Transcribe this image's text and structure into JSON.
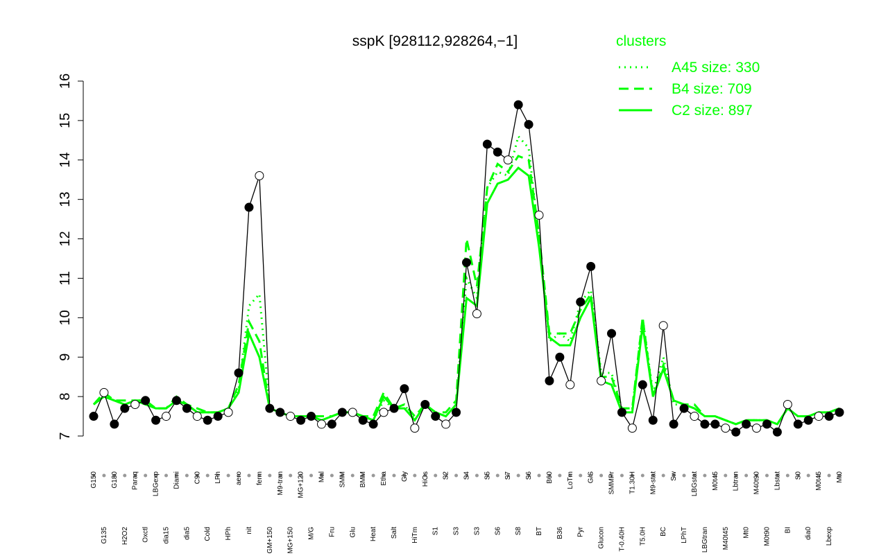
{
  "chart_data": {
    "type": "line",
    "title": "sspK [928112,928264,−1]",
    "legend_title": "clusters",
    "legend_position": "top-right",
    "categories": [
      "G150",
      "G135",
      "G180",
      "H2O2",
      "Paraq",
      "Oxctl",
      "LBGexp",
      "dia15",
      "Diami",
      "dia5",
      "C90",
      "Cold",
      "LPh",
      "HPh",
      "aero",
      "nit",
      "ferm",
      "GM+150",
      "M9-tran",
      "MG+150",
      "MG+120",
      "M/G",
      "Mal",
      "Fru",
      "SMM",
      "Glu",
      "BMM",
      "Heat",
      "Etha",
      "Salt",
      "Gly",
      "HiTm",
      "HiOs",
      "S1",
      "S2",
      "S3",
      "S4",
      "S3",
      "S5",
      "S6",
      "S7",
      "S8",
      "S6",
      "BT",
      "B60",
      "B36",
      "LoTm",
      "Pyr",
      "G/S",
      "Glucon",
      "SMMPr",
      "T-0.40H",
      "T1.30H",
      "T5.0H",
      "M9-stat",
      "BC",
      "Sw",
      "LPhT",
      "LBGstat",
      "LBGtran",
      "M0t45",
      "M40t45",
      "Lbtran",
      "Mt0",
      "M40t90",
      "M0t90",
      "Lbstat",
      "BI",
      "S0",
      "dia0",
      "M0t45",
      "Lbexp",
      "Mt0"
    ],
    "values": [
      7.5,
      8.1,
      7.3,
      7.7,
      7.8,
      7.9,
      7.4,
      7.5,
      7.9,
      7.7,
      7.5,
      7.4,
      7.5,
      7.6,
      8.6,
      12.8,
      13.6,
      7.7,
      7.6,
      7.5,
      7.4,
      7.5,
      7.3,
      7.3,
      7.6,
      7.6,
      7.4,
      7.3,
      7.6,
      7.7,
      8.2,
      7.2,
      7.8,
      7.5,
      7.3,
      7.6,
      11.4,
      10.1,
      14.4,
      14.2,
      14.0,
      15.4,
      14.9,
      12.6,
      8.4,
      9.0,
      8.3,
      10.4,
      11.3,
      8.4,
      9.6,
      7.6,
      7.2,
      8.3,
      7.4,
      9.8,
      7.3,
      7.7,
      7.5,
      7.3,
      7.3,
      7.2,
      7.1,
      7.3,
      7.2,
      7.3,
      7.1,
      7.8,
      7.3,
      7.4,
      7.5,
      7.5,
      7.6
    ],
    "series": [
      {
        "name": "A45 size: 330",
        "color": "#00ff00",
        "dash": "dotted",
        "values": [
          7.8,
          8.0,
          7.9,
          7.8,
          7.9,
          7.9,
          7.7,
          7.7,
          7.9,
          7.8,
          7.6,
          7.6,
          7.6,
          7.7,
          8.2,
          10.3,
          10.6,
          7.7,
          7.6,
          7.5,
          7.5,
          7.5,
          7.4,
          7.5,
          7.6,
          7.6,
          7.5,
          7.4,
          7.9,
          7.7,
          7.8,
          7.4,
          7.8,
          7.6,
          7.5,
          7.8,
          11.0,
          10.5,
          13.3,
          13.7,
          13.6,
          14.6,
          14.3,
          12.0,
          9.4,
          9.6,
          9.4,
          10.4,
          10.7,
          8.6,
          8.6,
          7.7,
          7.7,
          10.0,
          8.1,
          9.0,
          7.8,
          7.8,
          7.7,
          7.5,
          7.5,
          7.4,
          7.3,
          7.4,
          7.4,
          7.4,
          7.3,
          7.7,
          7.5,
          7.5,
          7.6,
          7.6,
          7.7
        ]
      },
      {
        "name": "B4 size: 709",
        "color": "#00ff00",
        "dash": "dashed",
        "values": [
          7.8,
          8.1,
          7.9,
          7.9,
          7.9,
          7.9,
          7.7,
          7.7,
          8.0,
          7.8,
          7.7,
          7.6,
          7.6,
          7.7,
          8.3,
          9.9,
          9.4,
          7.7,
          7.6,
          7.5,
          7.5,
          7.5,
          7.5,
          7.5,
          7.6,
          7.6,
          7.5,
          7.5,
          8.1,
          7.7,
          7.8,
          7.5,
          7.8,
          7.6,
          7.6,
          7.9,
          12.0,
          10.8,
          13.3,
          13.9,
          13.7,
          14.1,
          14.0,
          12.1,
          9.6,
          9.6,
          9.6,
          10.2,
          10.6,
          8.5,
          8.5,
          7.7,
          7.7,
          10.0,
          8.0,
          8.8,
          7.9,
          7.8,
          7.8,
          7.5,
          7.5,
          7.4,
          7.3,
          7.4,
          7.4,
          7.4,
          7.3,
          7.7,
          7.5,
          7.5,
          7.6,
          7.6,
          7.7
        ]
      },
      {
        "name": "C2 size: 897",
        "color": "#00ff00",
        "dash": "solid",
        "values": [
          7.8,
          8.0,
          7.9,
          7.8,
          7.9,
          7.8,
          7.7,
          7.7,
          7.9,
          7.8,
          7.6,
          7.6,
          7.6,
          7.7,
          8.1,
          9.6,
          9.0,
          7.7,
          7.6,
          7.5,
          7.5,
          7.5,
          7.4,
          7.5,
          7.6,
          7.6,
          7.5,
          7.4,
          8.0,
          7.7,
          7.7,
          7.4,
          7.8,
          7.6,
          7.5,
          7.8,
          10.5,
          10.3,
          12.9,
          13.4,
          13.5,
          13.8,
          13.6,
          11.8,
          9.5,
          9.3,
          9.3,
          10.0,
          10.5,
          8.4,
          8.3,
          7.6,
          7.6,
          9.8,
          8.0,
          8.7,
          7.9,
          7.8,
          7.7,
          7.5,
          7.5,
          7.4,
          7.3,
          7.4,
          7.4,
          7.4,
          7.3,
          7.7,
          7.5,
          7.5,
          7.6,
          7.6,
          7.7
        ]
      }
    ],
    "point_color": "#000000",
    "ylim": [
      7,
      16
    ],
    "yticks": [
      7,
      8,
      9,
      10,
      11,
      12,
      13,
      14,
      15,
      16
    ],
    "grid": false
  }
}
